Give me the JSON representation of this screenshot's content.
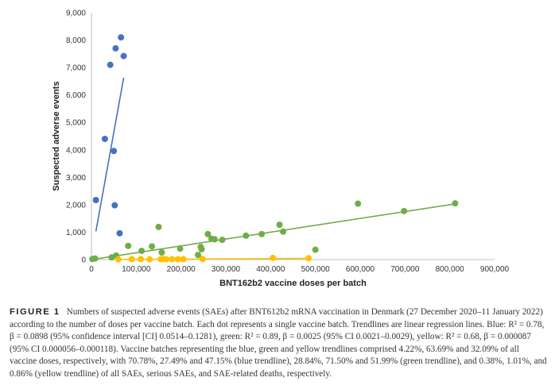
{
  "chart_data": {
    "type": "scatter",
    "xlabel": "BNT162b2 vaccine doses per batch",
    "ylabel": "Suspected adverse events",
    "xlim": [
      0,
      900000
    ],
    "ylim": [
      0,
      9000
    ],
    "x_ticks": [
      0,
      100000,
      200000,
      300000,
      400000,
      500000,
      600000,
      700000,
      800000,
      900000
    ],
    "y_ticks": [
      0,
      1000,
      2000,
      3000,
      4000,
      5000,
      6000,
      7000,
      8000,
      9000
    ],
    "x_tick_labels": [
      "0",
      "100,000",
      "200,000",
      "300,000",
      "400,000",
      "500,000",
      "600,000",
      "700,000",
      "800,000",
      "900,000"
    ],
    "y_tick_labels": [
      "0",
      "1,000",
      "2,000",
      "3,000",
      "4,000",
      "5,000",
      "6,000",
      "7,000",
      "8,000",
      "9,000"
    ],
    "grid": false,
    "series": [
      {
        "color": "#4472c4",
        "points": [
          [
            10000,
            2170
          ],
          [
            30000,
            4400
          ],
          [
            42000,
            7100
          ],
          [
            50000,
            3960
          ],
          [
            52000,
            1980
          ],
          [
            54000,
            7700
          ],
          [
            63000,
            960
          ],
          [
            66000,
            8100
          ],
          [
            72000,
            7420
          ]
        ],
        "trendline": [
          [
            10000,
            1030
          ],
          [
            72000,
            6630
          ]
        ]
      },
      {
        "color": "#70ad47",
        "points": [
          [
            2000,
            20
          ],
          [
            8000,
            40
          ],
          [
            45000,
            80
          ],
          [
            55000,
            150
          ],
          [
            82000,
            500
          ],
          [
            112000,
            320
          ],
          [
            135000,
            480
          ],
          [
            150000,
            1190
          ],
          [
            157000,
            260
          ],
          [
            198000,
            400
          ],
          [
            238000,
            170
          ],
          [
            244000,
            460
          ],
          [
            246000,
            380
          ],
          [
            260000,
            930
          ],
          [
            268000,
            760
          ],
          [
            275000,
            740
          ],
          [
            292000,
            720
          ],
          [
            345000,
            870
          ],
          [
            380000,
            930
          ],
          [
            420000,
            1270
          ],
          [
            428000,
            1020
          ],
          [
            500000,
            360
          ],
          [
            595000,
            2040
          ],
          [
            698000,
            1770
          ],
          [
            812000,
            2050
          ]
        ],
        "trendline": [
          [
            0,
            0
          ],
          [
            812000,
            2030
          ]
        ]
      },
      {
        "color": "#ffc000",
        "points": [
          [
            60000,
            10
          ],
          [
            90000,
            15
          ],
          [
            110000,
            20
          ],
          [
            130000,
            10
          ],
          [
            155000,
            15
          ],
          [
            160000,
            20
          ],
          [
            167000,
            10
          ],
          [
            180000,
            15
          ],
          [
            193000,
            10
          ],
          [
            205000,
            15
          ],
          [
            248000,
            20
          ],
          [
            405000,
            60
          ],
          [
            485000,
            50
          ]
        ],
        "trendline": [
          [
            60000,
            5
          ],
          [
            485000,
            42
          ]
        ]
      }
    ]
  },
  "caption": {
    "label": "FIGURE 1",
    "text": "Numbers of suspected adverse events (SAEs) after BNT612b2 mRNA vaccination in Denmark (27 December 2020–11 January 2022) according to the number of doses per vaccine batch. Each dot represents a single vaccine batch. Trendlines are linear regression lines. Blue: R² = 0.78, β = 0.0898 (95% confidence interval [CI] 0.0514–0.1281), green: R² = 0.89, β = 0.0025 (95% CI 0.0021–0.0029), yellow: R² = 0.68, β = 0.000087 (95% CI 0.000056–0.000118). Vaccine batches representing the blue, green and yellow trendlines comprised 4.22%, 63.69% and 32.09% of all vaccine doses, respectively, with 70.78%, 27.49% and 47.15% (blue trendline), 28.84%, 71.50% and 51.99% (green trendline), and 0.38%, 1.01%, and 0.86% (yellow trendline) of all SAEs, serious SAEs, and SAE-related deaths, respectively."
  }
}
